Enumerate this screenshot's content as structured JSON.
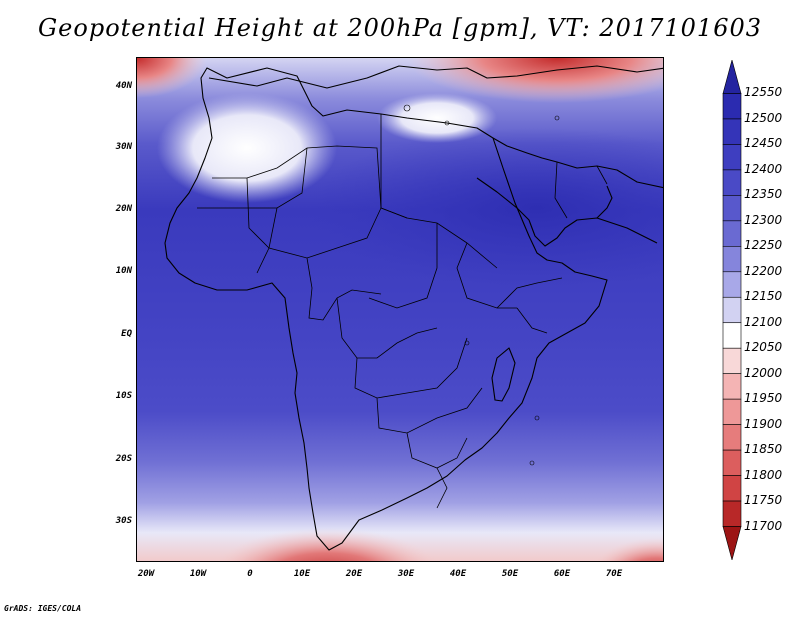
{
  "title": "Geopotential Height at 200hPa [gpm], VT: 2017101603",
  "footer": "GrADS: IGES/COLA",
  "map": {
    "lat_ticks": [
      "40N",
      "30N",
      "20N",
      "10N",
      "EQ",
      "10S",
      "20S",
      "30S"
    ],
    "lon_ticks": [
      "20W",
      "10W",
      "0",
      "10E",
      "20E",
      "30E",
      "40E",
      "50E",
      "60E",
      "70E"
    ]
  },
  "colorbar": {
    "labels": [
      "12550",
      "12500",
      "12450",
      "12400",
      "12350",
      "12300",
      "12250",
      "12200",
      "12150",
      "12100",
      "12050",
      "12000",
      "11950",
      "11900",
      "11850",
      "11800",
      "11750",
      "11700"
    ],
    "colors": [
      "#2424a0",
      "#2b2bb0",
      "#3434b8",
      "#3e3ec0",
      "#4a4ac6",
      "#5858cc",
      "#6a6ad2",
      "#8585dc",
      "#a8a8e8",
      "#d2d2f2",
      "#ffffff",
      "#f8d8d8",
      "#f4b4b4",
      "#ee9898",
      "#e67c7c",
      "#dc5e5e",
      "#d04444",
      "#b82828",
      "#9c1414"
    ]
  }
}
